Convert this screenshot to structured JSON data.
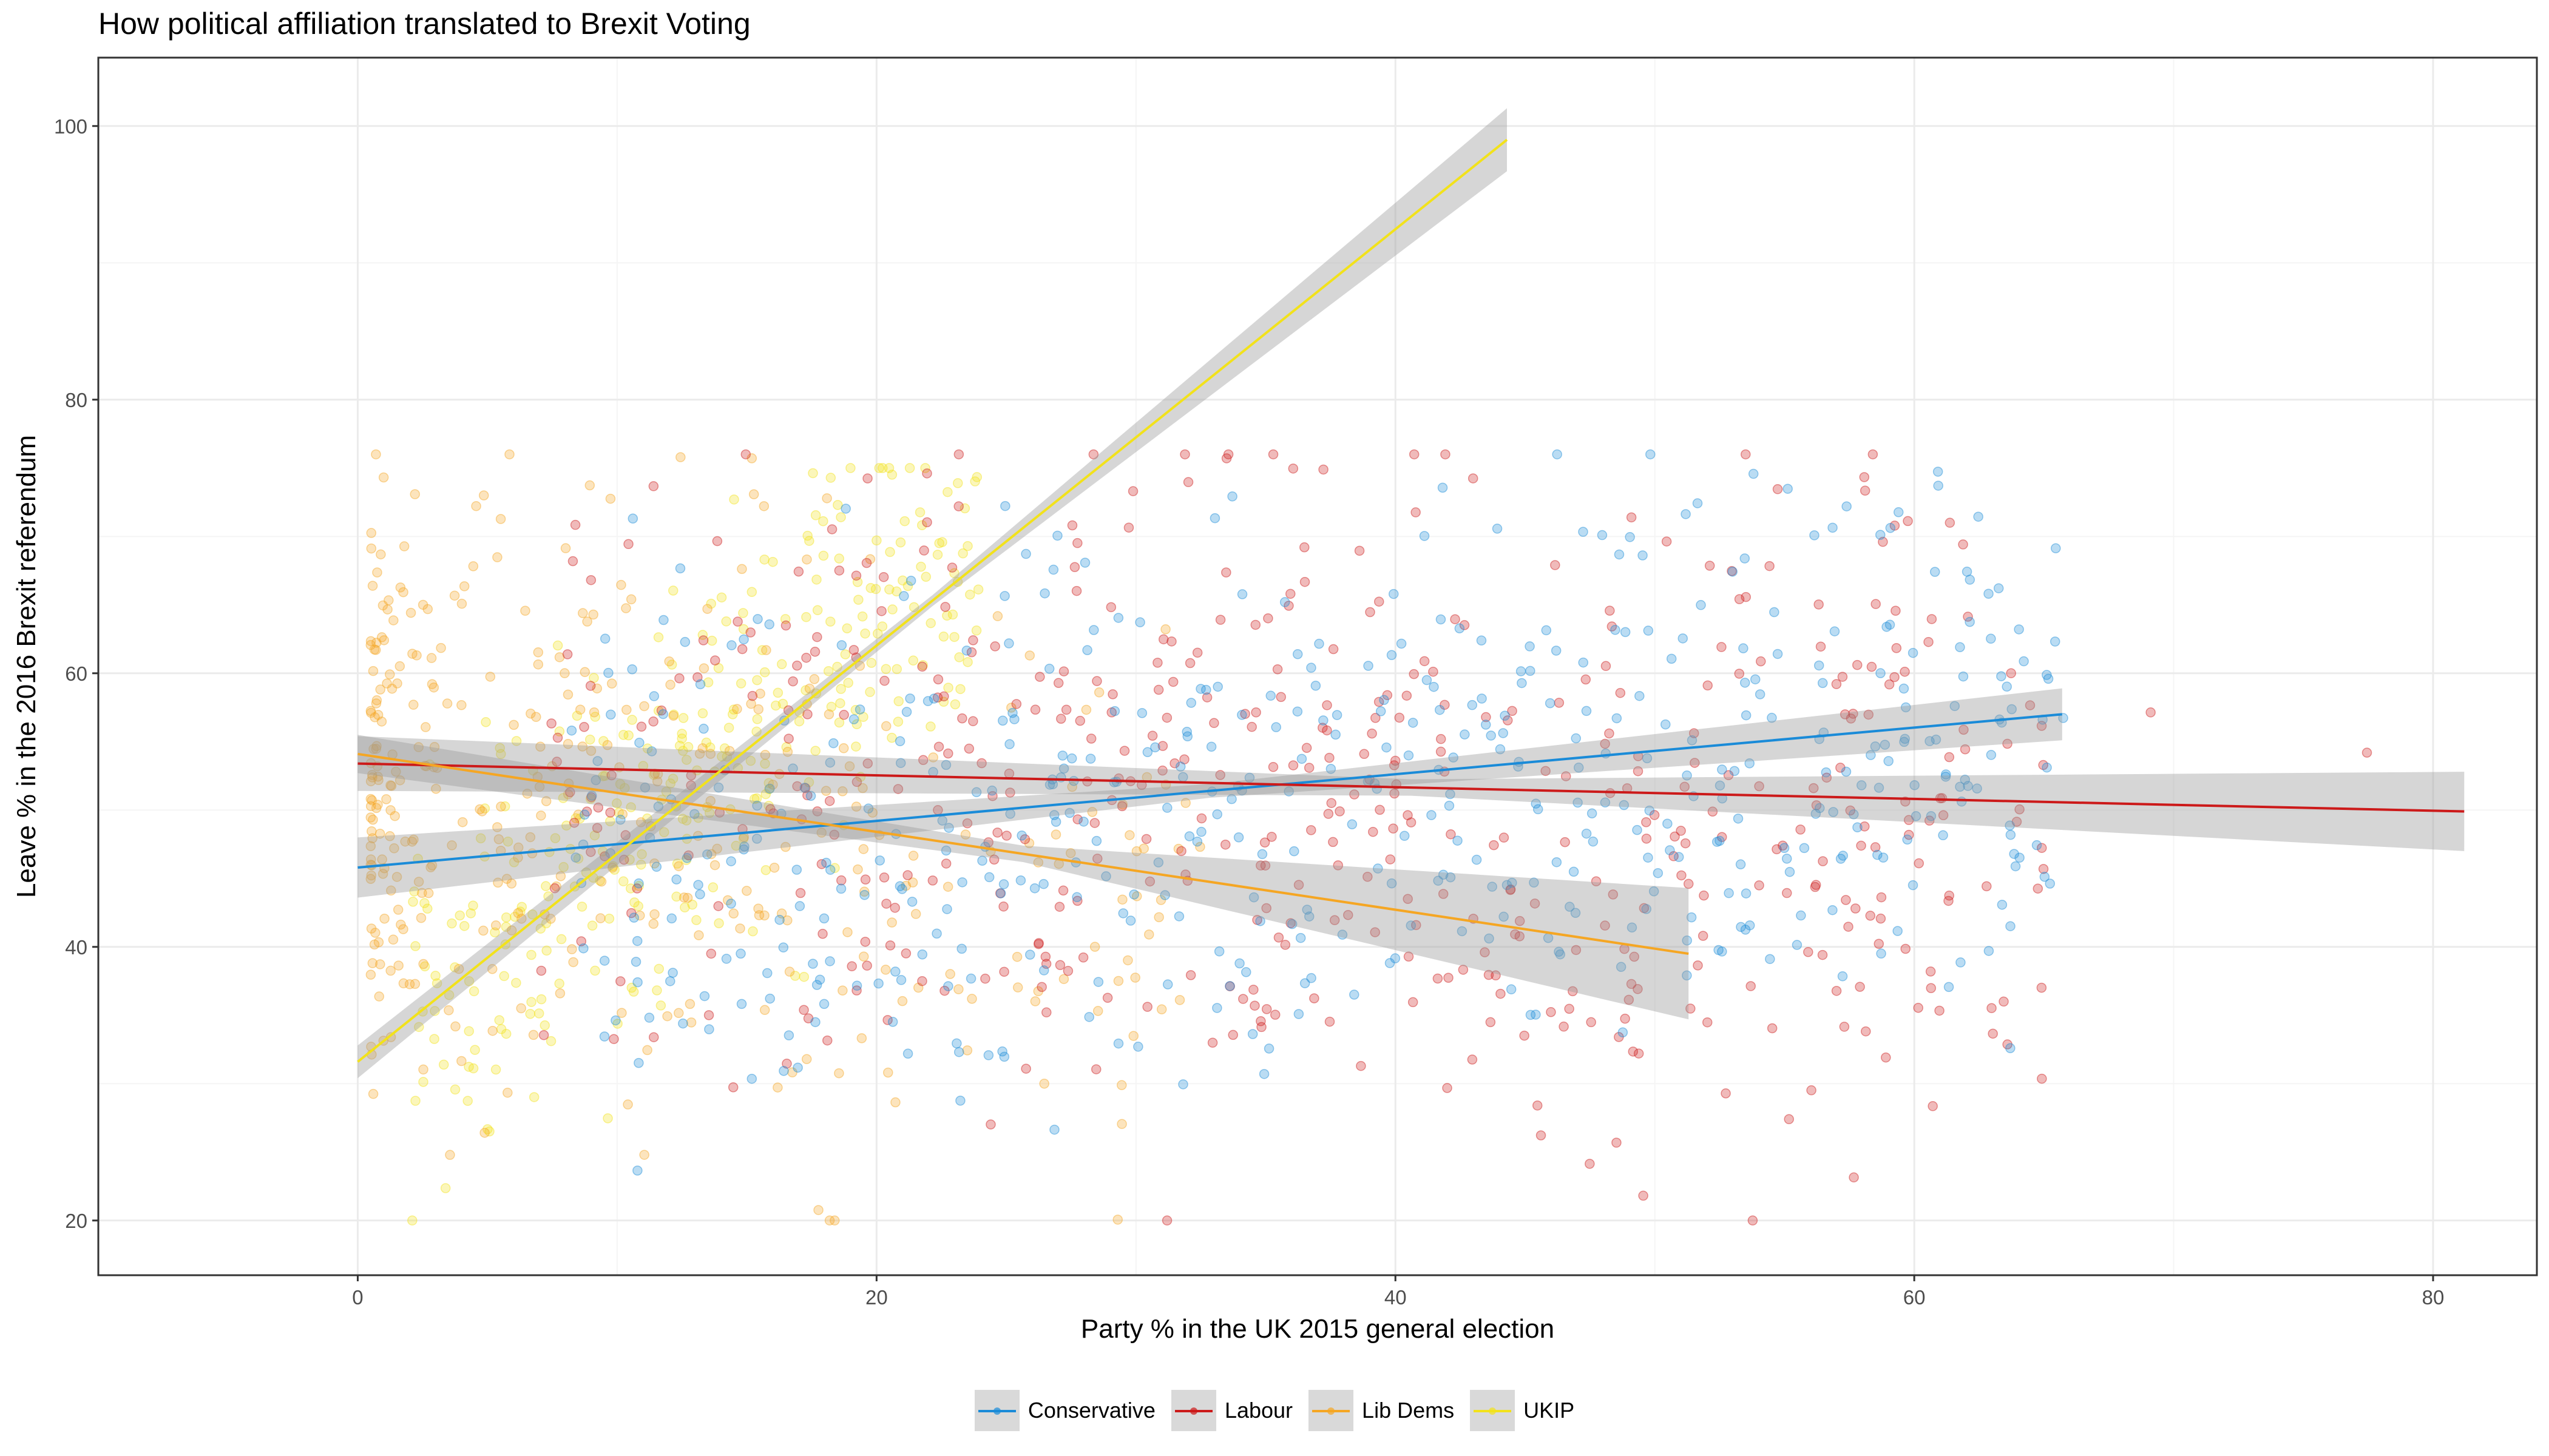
{
  "chart_data": {
    "type": "scatter",
    "title": "How political affiliation translated to Brexit Voting",
    "xlabel": "Party % in the UK 2015 general election",
    "ylabel": "Leave % in the 2016 Brexit referendum",
    "xlim": [
      -10,
      84
    ],
    "ylim": [
      16,
      105
    ],
    "x_ticks": [
      0,
      20,
      40,
      60,
      80
    ],
    "y_ticks": [
      20,
      40,
      60,
      80,
      100
    ],
    "x_tick_labels": [
      "0",
      "20",
      "40",
      "60",
      "80"
    ],
    "y_tick_labels": [
      "20",
      "40",
      "60",
      "80",
      "100"
    ],
    "grid": true,
    "legend_position": "bottom",
    "point_opacity": 0.3,
    "series": [
      {
        "name": "Conservative",
        "color": "#1a8bd8",
        "x_range": [
          0,
          66
        ],
        "leave_range": [
          20,
          76
        ],
        "trend": {
          "x": [
            0,
            65.7
          ],
          "y": [
            45.8,
            57.0
          ]
        },
        "band_halfwidth": {
          "start": 2.2,
          "mid": 0.5,
          "end": 1.9
        }
      },
      {
        "name": "Labour",
        "color": "#cc1a1a",
        "x_range": [
          0,
          81.5
        ],
        "leave_range": [
          20,
          76
        ],
        "trend": {
          "x": [
            0,
            81.2
          ],
          "y": [
            53.4,
            49.9
          ]
        },
        "band_halfwidth": {
          "start": 2.0,
          "mid": 0.6,
          "end": 2.9
        }
      },
      {
        "name": "Lib Dems",
        "color": "#f5a623",
        "x_range": [
          0,
          51
        ],
        "leave_range": [
          20,
          76
        ],
        "trend": {
          "x": [
            0,
            51.3
          ],
          "y": [
            54.1,
            39.5
          ]
        },
        "band_halfwidth": {
          "start": 1.4,
          "mid": 0.6,
          "end": 4.8
        }
      },
      {
        "name": "UKIP",
        "color": "#f2e21b",
        "x_range": [
          0,
          44
        ],
        "leave_range": [
          20,
          76
        ],
        "trend": {
          "x": [
            0,
            44.3
          ],
          "y": [
            31.6,
            99.0
          ]
        },
        "band_halfwidth": {
          "start": 1.2,
          "mid": 0.4,
          "end": 2.3
        }
      }
    ]
  }
}
